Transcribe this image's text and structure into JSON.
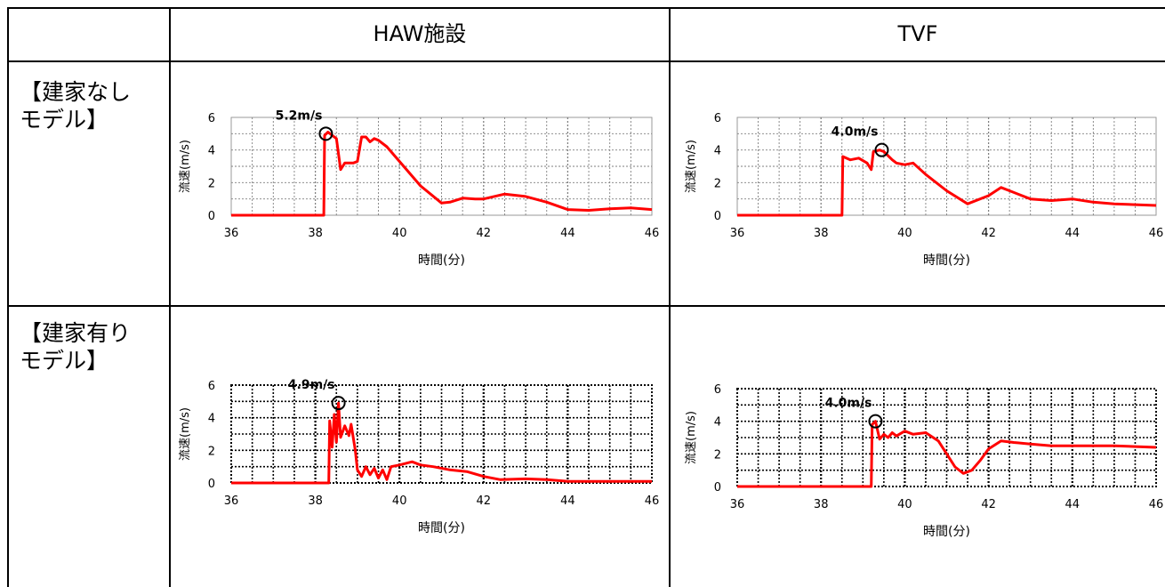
{
  "table": {
    "col_headers": [
      "",
      "HAW施設",
      "TVF"
    ],
    "row_labels": [
      "【建家なし\nモデル】",
      "【建家有り\nモデル】"
    ]
  },
  "colors": {
    "series": "#ff0000",
    "marker": "#000000",
    "grid": "#7f7f7f"
  },
  "chart_data": [
    {
      "id": "haw-no-building",
      "type": "line",
      "title": "",
      "xlabel": "時間(分)",
      "ylabel": "流速(m/s)",
      "xlim": [
        36,
        46
      ],
      "ylim": [
        0,
        6
      ],
      "xticks": [
        36,
        38,
        40,
        42,
        44,
        46
      ],
      "yticks": [
        0,
        2,
        4,
        6
      ],
      "grid": "dotted",
      "grid_style": "light",
      "annotation": {
        "text": "5.2m/s",
        "x": 38.25,
        "y": 5.0
      },
      "series": [
        {
          "values": [
            [
              36,
              0
            ],
            [
              38.2,
              0
            ],
            [
              38.22,
              4.9
            ],
            [
              38.3,
              5.1
            ],
            [
              38.4,
              4.9
            ],
            [
              38.5,
              4.7
            ],
            [
              38.6,
              2.8
            ],
            [
              38.7,
              3.2
            ],
            [
              38.9,
              3.2
            ],
            [
              39.0,
              3.3
            ],
            [
              39.1,
              4.8
            ],
            [
              39.2,
              4.8
            ],
            [
              39.3,
              4.5
            ],
            [
              39.4,
              4.7
            ],
            [
              39.5,
              4.6
            ],
            [
              39.7,
              4.2
            ],
            [
              40.0,
              3.3
            ],
            [
              40.5,
              1.8
            ],
            [
              41.0,
              0.75
            ],
            [
              41.2,
              0.8
            ],
            [
              41.5,
              1.05
            ],
            [
              41.8,
              1.0
            ],
            [
              42.0,
              1.0
            ],
            [
              42.5,
              1.3
            ],
            [
              43.0,
              1.15
            ],
            [
              43.5,
              0.8
            ],
            [
              44.0,
              0.35
            ],
            [
              44.5,
              0.3
            ],
            [
              45.0,
              0.4
            ],
            [
              45.5,
              0.45
            ],
            [
              46.0,
              0.35
            ]
          ]
        }
      ]
    },
    {
      "id": "tvf-no-building",
      "type": "line",
      "title": "",
      "xlabel": "時間(分)",
      "ylabel": "流速(m/s)",
      "xlim": [
        36,
        46
      ],
      "ylim": [
        0,
        6
      ],
      "xticks": [
        36,
        38,
        40,
        42,
        44,
        46
      ],
      "yticks": [
        0,
        2,
        4,
        6
      ],
      "grid": "dotted",
      "grid_style": "light",
      "annotation": {
        "text": "4.0m/s",
        "x": 39.45,
        "y": 4.0
      },
      "series": [
        {
          "values": [
            [
              36,
              0
            ],
            [
              38.5,
              0
            ],
            [
              38.52,
              3.6
            ],
            [
              38.7,
              3.4
            ],
            [
              38.9,
              3.5
            ],
            [
              39.1,
              3.2
            ],
            [
              39.2,
              2.8
            ],
            [
              39.25,
              3.9
            ],
            [
              39.4,
              4.0
            ],
            [
              39.5,
              3.9
            ],
            [
              39.7,
              3.4
            ],
            [
              39.8,
              3.2
            ],
            [
              40.0,
              3.1
            ],
            [
              40.2,
              3.2
            ],
            [
              40.5,
              2.5
            ],
            [
              41.0,
              1.5
            ],
            [
              41.5,
              0.7
            ],
            [
              42.0,
              1.2
            ],
            [
              42.3,
              1.7
            ],
            [
              42.5,
              1.5
            ],
            [
              43.0,
              1.0
            ],
            [
              43.5,
              0.9
            ],
            [
              44.0,
              1.0
            ],
            [
              44.5,
              0.8
            ],
            [
              45.0,
              0.7
            ],
            [
              46.0,
              0.6
            ]
          ]
        }
      ]
    },
    {
      "id": "haw-with-building",
      "type": "line",
      "title": "",
      "xlabel": "時間(分)",
      "ylabel": "流速(m/s)",
      "xlim": [
        36,
        46
      ],
      "ylim": [
        0,
        6
      ],
      "xticks": [
        36,
        38,
        40,
        42,
        44,
        46
      ],
      "yticks": [
        0,
        2,
        4,
        6
      ],
      "grid": "dotted",
      "grid_style": "heavy",
      "annotation": {
        "text": "4.9m/s",
        "x": 38.55,
        "y": 4.9
      },
      "series": [
        {
          "values": [
            [
              36,
              0
            ],
            [
              38.32,
              0
            ],
            [
              38.34,
              3.8
            ],
            [
              38.4,
              2.2
            ],
            [
              38.45,
              4.2
            ],
            [
              38.5,
              2.5
            ],
            [
              38.55,
              4.9
            ],
            [
              38.6,
              2.8
            ],
            [
              38.7,
              3.5
            ],
            [
              38.8,
              2.9
            ],
            [
              38.85,
              3.6
            ],
            [
              38.95,
              2.0
            ],
            [
              39.0,
              0.8
            ],
            [
              39.1,
              0.4
            ],
            [
              39.2,
              1.0
            ],
            [
              39.3,
              0.5
            ],
            [
              39.4,
              0.9
            ],
            [
              39.5,
              0.3
            ],
            [
              39.6,
              0.8
            ],
            [
              39.7,
              0.2
            ],
            [
              39.8,
              1.0
            ],
            [
              40.0,
              1.1
            ],
            [
              40.3,
              1.3
            ],
            [
              40.5,
              1.1
            ],
            [
              40.8,
              1.0
            ],
            [
              41.2,
              0.8
            ],
            [
              41.6,
              0.7
            ],
            [
              42.0,
              0.4
            ],
            [
              42.4,
              0.2
            ],
            [
              43.0,
              0.25
            ],
            [
              43.5,
              0.2
            ],
            [
              44.0,
              0.1
            ],
            [
              45.0,
              0.1
            ],
            [
              46.0,
              0.1
            ]
          ]
        }
      ]
    },
    {
      "id": "tvf-with-building",
      "type": "line",
      "title": "",
      "xlabel": "時間(分)",
      "ylabel": "流速(m/s)",
      "xlim": [
        36,
        46
      ],
      "ylim": [
        0,
        6
      ],
      "xticks": [
        36,
        38,
        40,
        42,
        44,
        46
      ],
      "yticks": [
        0,
        2,
        4,
        6
      ],
      "grid": "dotted",
      "grid_style": "heavy",
      "annotation": {
        "text": "4.0m/s",
        "x": 39.3,
        "y": 4.0
      },
      "series": [
        {
          "values": [
            [
              36,
              0
            ],
            [
              39.2,
              0
            ],
            [
              39.22,
              3.8
            ],
            [
              39.3,
              4.0
            ],
            [
              39.4,
              2.9
            ],
            [
              39.5,
              3.2
            ],
            [
              39.6,
              3.0
            ],
            [
              39.7,
              3.3
            ],
            [
              39.8,
              3.1
            ],
            [
              40.0,
              3.4
            ],
            [
              40.2,
              3.2
            ],
            [
              40.5,
              3.3
            ],
            [
              40.8,
              2.8
            ],
            [
              41.0,
              2.0
            ],
            [
              41.2,
              1.2
            ],
            [
              41.4,
              0.8
            ],
            [
              41.6,
              1.0
            ],
            [
              41.8,
              1.6
            ],
            [
              42.0,
              2.3
            ],
            [
              42.3,
              2.8
            ],
            [
              42.6,
              2.7
            ],
            [
              43.0,
              2.6
            ],
            [
              43.5,
              2.5
            ],
            [
              44.0,
              2.5
            ],
            [
              45.0,
              2.5
            ],
            [
              46.0,
              2.4
            ]
          ]
        }
      ]
    }
  ]
}
